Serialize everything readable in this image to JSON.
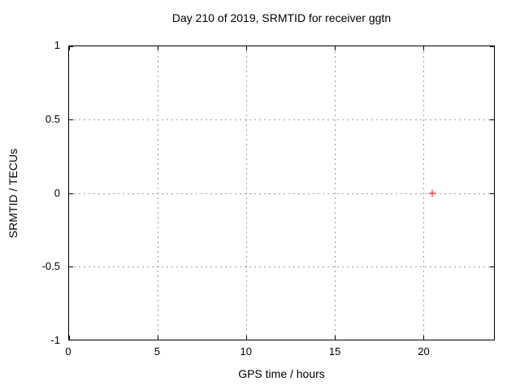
{
  "chart_data": {
    "type": "scatter",
    "title": "Day 210 of 2019, SRMTID for receiver ggtn",
    "xlabel": "GPS time / hours",
    "ylabel": "SRMTID / TECUs",
    "xlim": [
      0,
      24
    ],
    "ylim": [
      -1,
      1
    ],
    "grid": true,
    "legend": "none",
    "x_ticks": [
      {
        "v": 0,
        "label": "0"
      },
      {
        "v": 5,
        "label": "5"
      },
      {
        "v": 10,
        "label": "10"
      },
      {
        "v": 15,
        "label": "15"
      },
      {
        "v": 20,
        "label": "20"
      }
    ],
    "y_ticks": [
      {
        "v": -1,
        "label": "-1"
      },
      {
        "v": -0.5,
        "label": "-0.5"
      },
      {
        "v": 0,
        "label": "0"
      },
      {
        "v": 0.5,
        "label": "0.5"
      },
      {
        "v": 1,
        "label": "1"
      }
    ],
    "series": [
      {
        "name": "SRMTID",
        "marker": "plus",
        "color": "#ff0000",
        "points": [
          {
            "x": 20.5,
            "y": 0
          }
        ]
      }
    ]
  },
  "colors": {
    "background": "#ffffff",
    "border": "#000000",
    "grid": "#9a9a9a",
    "text": "#000000",
    "marker": "#ff0000"
  }
}
